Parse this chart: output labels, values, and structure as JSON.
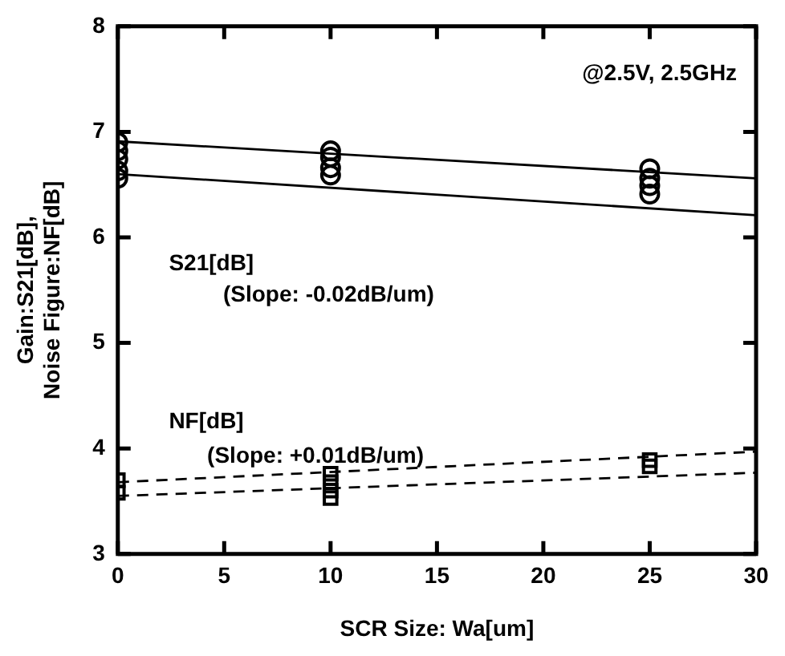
{
  "chart_data": {
    "type": "scatter",
    "xlabel": "SCR Size: Wa[um]",
    "ylabel": "Gain:S21[dB], Noise Figure:NF[dB]",
    "xlim": [
      0,
      30
    ],
    "ylim": [
      3,
      8
    ],
    "xticks": [
      0,
      5,
      10,
      15,
      20,
      25,
      30
    ],
    "yticks": [
      3,
      4,
      5,
      6,
      7,
      8
    ],
    "series": [
      {
        "type": "scatter",
        "color": "#000000",
        "marker": "circle",
        "x": [
          0,
          0,
          0,
          0,
          0,
          10,
          10,
          10,
          10,
          25,
          25,
          25,
          25
        ],
        "values": [
          6.9,
          6.82,
          6.74,
          6.63,
          6.56,
          6.82,
          6.76,
          6.66,
          6.59,
          6.65,
          6.56,
          6.49,
          6.41
        ]
      },
      {
        "type": "scatter",
        "color": "#000000",
        "marker": "square",
        "x": [
          0,
          0,
          10,
          10,
          10,
          10,
          25,
          25
        ],
        "values": [
          3.7,
          3.58,
          3.76,
          3.68,
          3.6,
          3.53,
          3.89,
          3.83
        ]
      },
      {
        "type": "line",
        "color": "#000000",
        "marker": "none",
        "line_style": "solid",
        "x": [
          0,
          30
        ],
        "values": [
          6.91,
          6.56
        ]
      },
      {
        "type": "line",
        "color": "#000000",
        "marker": "none",
        "line_style": "solid",
        "x": [
          0,
          30
        ],
        "values": [
          6.6,
          6.21
        ]
      },
      {
        "type": "line",
        "color": "#000000",
        "marker": "none",
        "line_style": "dashed",
        "x": [
          0,
          30
        ],
        "values": [
          3.68,
          3.97
        ]
      },
      {
        "type": "line",
        "color": "#000000",
        "marker": "none",
        "line_style": "dashed",
        "x": [
          0,
          30
        ],
        "values": [
          3.55,
          3.77
        ]
      }
    ],
    "annotations": [
      "@2.5V, 2.5GHz",
      "S21[dB]",
      "(Slope: -0.02dB/um)",
      "NF[dB]",
      "(Slope: +0.01dB/um)"
    ]
  }
}
